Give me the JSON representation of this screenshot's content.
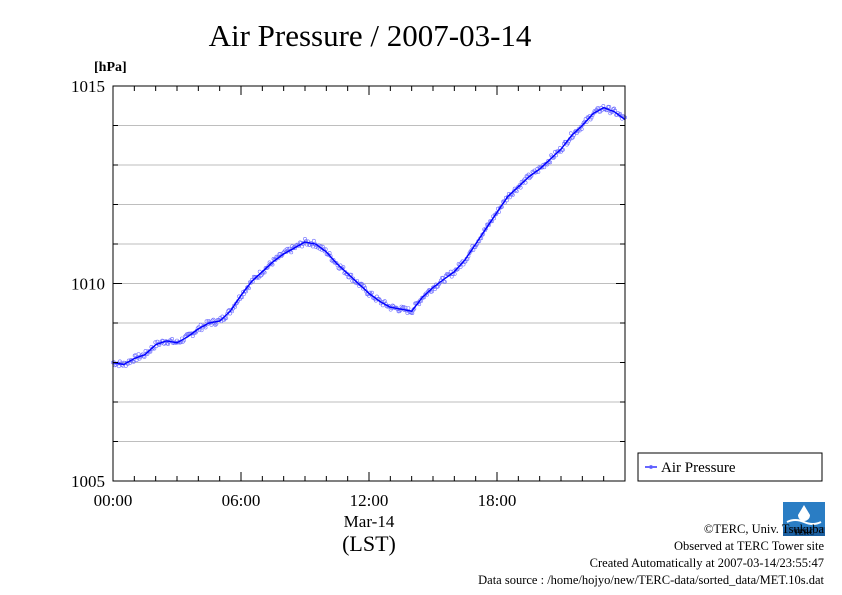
{
  "chart_data": {
    "type": "line",
    "title": "Air Pressure / 2007-03-14",
    "ylabel": "[hPa]",
    "xlabel": "",
    "x_date_label": "Mar-14",
    "x_zone_label": "(LST)",
    "x_ticks": [
      "00:00",
      "06:00",
      "12:00",
      "18:00"
    ],
    "y_ticks": [
      "1005",
      "1010",
      "1015"
    ],
    "xlim": [
      0,
      24
    ],
    "ylim": [
      1005,
      1015
    ],
    "grid": true,
    "legend_position": "right",
    "series": [
      {
        "name": "Air Pressure",
        "color": "#0000ff",
        "x": [
          0,
          0.5,
          1,
          1.5,
          2,
          2.5,
          3,
          3.5,
          4,
          4.5,
          5,
          5.5,
          6,
          6.5,
          7,
          7.5,
          8,
          8.5,
          9,
          9.5,
          10,
          10.5,
          11,
          11.5,
          12,
          12.5,
          13,
          13.5,
          14,
          14.5,
          15,
          15.5,
          16,
          16.5,
          17,
          17.5,
          18,
          18.5,
          19,
          19.5,
          20,
          20.5,
          21,
          21.5,
          22,
          22.5,
          23,
          23.5,
          24
        ],
        "y": [
          1008.0,
          1007.95,
          1008.1,
          1008.2,
          1008.45,
          1008.55,
          1008.5,
          1008.65,
          1008.85,
          1009.0,
          1009.05,
          1009.3,
          1009.7,
          1010.05,
          1010.3,
          1010.55,
          1010.75,
          1010.9,
          1011.05,
          1011.0,
          1010.8,
          1010.5,
          1010.25,
          1010.0,
          1009.75,
          1009.55,
          1009.4,
          1009.35,
          1009.3,
          1009.65,
          1009.9,
          1010.1,
          1010.3,
          1010.6,
          1011.0,
          1011.4,
          1011.8,
          1012.2,
          1012.45,
          1012.7,
          1012.9,
          1013.15,
          1013.4,
          1013.75,
          1014.0,
          1014.3,
          1014.45,
          1014.35,
          1014.15
        ]
      }
    ]
  },
  "credits": {
    "copyright": "©TERC, Univ. Tsukuba",
    "observed": "Observed at TERC Tower site",
    "created": "Created Automatically at 2007-03-14/23:55:47",
    "source": "Data source : /home/hojyo/new/TERC-data/sorted_data/MET.10s.dat",
    "logo_text": "TERC"
  }
}
